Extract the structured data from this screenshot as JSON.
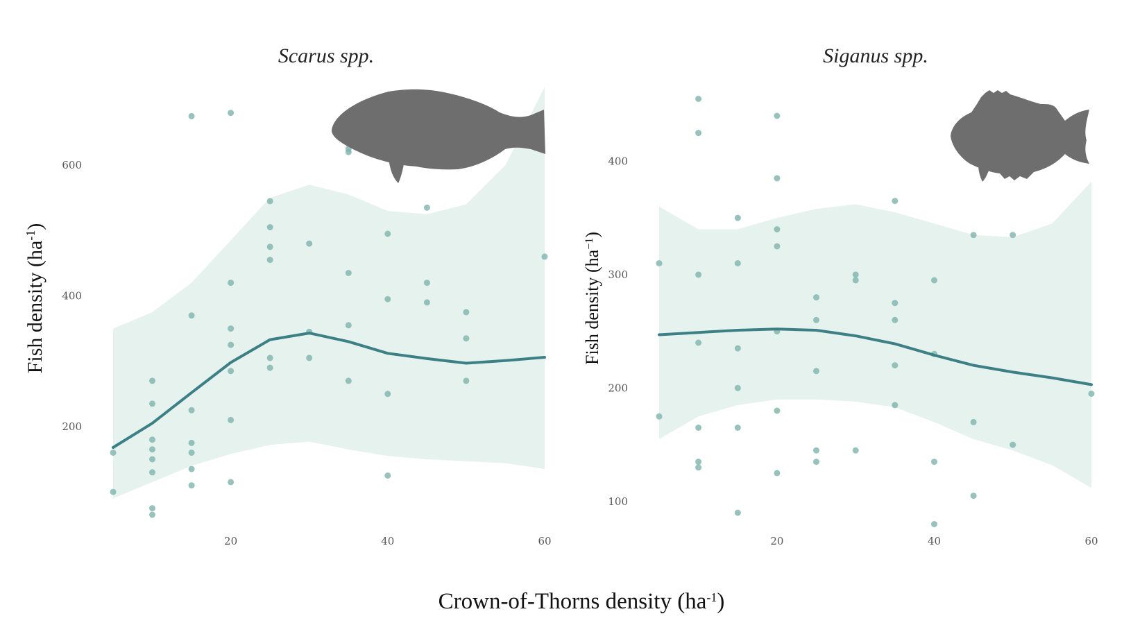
{
  "figure": {
    "x_axis_label": "Crown-of-Thorns density (ha",
    "x_axis_label_sup": "-1",
    "x_axis_label_close": ")"
  },
  "chart_data": [
    {
      "type": "scatter",
      "title": "Scarus spp.",
      "ylabel": "Fish density (ha",
      "ylabel_sup": "-1",
      "ylabel_close": ")",
      "xlabel": "Crown-of-Thorns density (ha-1)",
      "xlim": [
        5,
        60
      ],
      "ylim": [
        30,
        720
      ],
      "x_ticks": [
        20,
        40,
        60
      ],
      "y_ticks": [
        200,
        400,
        600
      ],
      "grid": false,
      "colors": {
        "points": "#7fb3ac",
        "line": "#3c8086",
        "band": "#e5f2ee",
        "silhouette": "#6e6e6e"
      },
      "icon": "fish-silhouette-icon",
      "points": [
        [
          5,
          160
        ],
        [
          5,
          100
        ],
        [
          10,
          270
        ],
        [
          10,
          235
        ],
        [
          10,
          180
        ],
        [
          10,
          165
        ],
        [
          10,
          150
        ],
        [
          10,
          130
        ],
        [
          10,
          75
        ],
        [
          10,
          65
        ],
        [
          15,
          675
        ],
        [
          15,
          370
        ],
        [
          15,
          225
        ],
        [
          15,
          175
        ],
        [
          15,
          160
        ],
        [
          15,
          135
        ],
        [
          15,
          110
        ],
        [
          20,
          680
        ],
        [
          20,
          420
        ],
        [
          20,
          350
        ],
        [
          20,
          325
        ],
        [
          20,
          285
        ],
        [
          20,
          210
        ],
        [
          20,
          115
        ],
        [
          25,
          545
        ],
        [
          25,
          505
        ],
        [
          25,
          475
        ],
        [
          25,
          455
        ],
        [
          25,
          305
        ],
        [
          25,
          290
        ],
        [
          30,
          480
        ],
        [
          30,
          345
        ],
        [
          30,
          305
        ],
        [
          35,
          625
        ],
        [
          35,
          620
        ],
        [
          35,
          435
        ],
        [
          35,
          355
        ],
        [
          35,
          270
        ],
        [
          40,
          495
        ],
        [
          40,
          395
        ],
        [
          40,
          250
        ],
        [
          40,
          125
        ],
        [
          45,
          535
        ],
        [
          45,
          420
        ],
        [
          45,
          390
        ],
        [
          50,
          375
        ],
        [
          50,
          335
        ],
        [
          50,
          270
        ],
        [
          60,
          460
        ]
      ],
      "smooth": {
        "x": [
          5,
          10,
          15,
          20,
          25,
          30,
          35,
          40,
          45,
          50,
          55,
          60
        ],
        "y": [
          168,
          205,
          252,
          298,
          333,
          343,
          330,
          312,
          304,
          297,
          301,
          306
        ],
        "lo": [
          90,
          115,
          140,
          158,
          172,
          177,
          165,
          155,
          150,
          147,
          144,
          135
        ],
        "hi": [
          350,
          375,
          420,
          485,
          550,
          570,
          555,
          530,
          525,
          540,
          600,
          720
        ]
      }
    },
    {
      "type": "scatter",
      "title": "Siganus spp.",
      "ylabel": "Fish density (ha",
      "ylabel_sup": "−1",
      "ylabel_close": ")",
      "xlabel": "Crown-of-Thorns density (ha-1)",
      "xlim": [
        5,
        60
      ],
      "ylim": [
        65,
        470
      ],
      "x_ticks": [
        20,
        40,
        60
      ],
      "y_ticks": [
        100,
        200,
        300,
        400
      ],
      "grid": false,
      "colors": {
        "points": "#7fb3ac",
        "line": "#3c8086",
        "band": "#e5f2ee",
        "silhouette": "#6e6e6e"
      },
      "icon": "fish-silhouette-icon",
      "points": [
        [
          5,
          310
        ],
        [
          5,
          175
        ],
        [
          10,
          455
        ],
        [
          10,
          425
        ],
        [
          10,
          300
        ],
        [
          10,
          240
        ],
        [
          10,
          165
        ],
        [
          10,
          135
        ],
        [
          10,
          130
        ],
        [
          15,
          350
        ],
        [
          15,
          310
        ],
        [
          15,
          235
        ],
        [
          15,
          200
        ],
        [
          15,
          165
        ],
        [
          15,
          90
        ],
        [
          20,
          440
        ],
        [
          20,
          385
        ],
        [
          20,
          340
        ],
        [
          20,
          325
        ],
        [
          20,
          250
        ],
        [
          20,
          180
        ],
        [
          20,
          125
        ],
        [
          25,
          280
        ],
        [
          25,
          260
        ],
        [
          25,
          215
        ],
        [
          25,
          145
        ],
        [
          25,
          135
        ],
        [
          30,
          300
        ],
        [
          30,
          295
        ],
        [
          30,
          145
        ],
        [
          35,
          365
        ],
        [
          35,
          275
        ],
        [
          35,
          260
        ],
        [
          35,
          220
        ],
        [
          35,
          185
        ],
        [
          40,
          295
        ],
        [
          40,
          230
        ],
        [
          40,
          135
        ],
        [
          40,
          80
        ],
        [
          45,
          335
        ],
        [
          45,
          170
        ],
        [
          45,
          105
        ],
        [
          50,
          335
        ],
        [
          50,
          150
        ],
        [
          60,
          195
        ]
      ],
      "smooth": {
        "x": [
          5,
          10,
          15,
          20,
          25,
          30,
          35,
          40,
          45,
          50,
          55,
          60
        ],
        "y": [
          247,
          249,
          251,
          252,
          251,
          246,
          239,
          229,
          220,
          214,
          209,
          203
        ],
        "lo": [
          155,
          175,
          185,
          190,
          190,
          188,
          183,
          170,
          155,
          145,
          132,
          112
        ],
        "hi": [
          360,
          340,
          340,
          350,
          358,
          362,
          355,
          345,
          335,
          333,
          345,
          382
        ]
      }
    }
  ]
}
